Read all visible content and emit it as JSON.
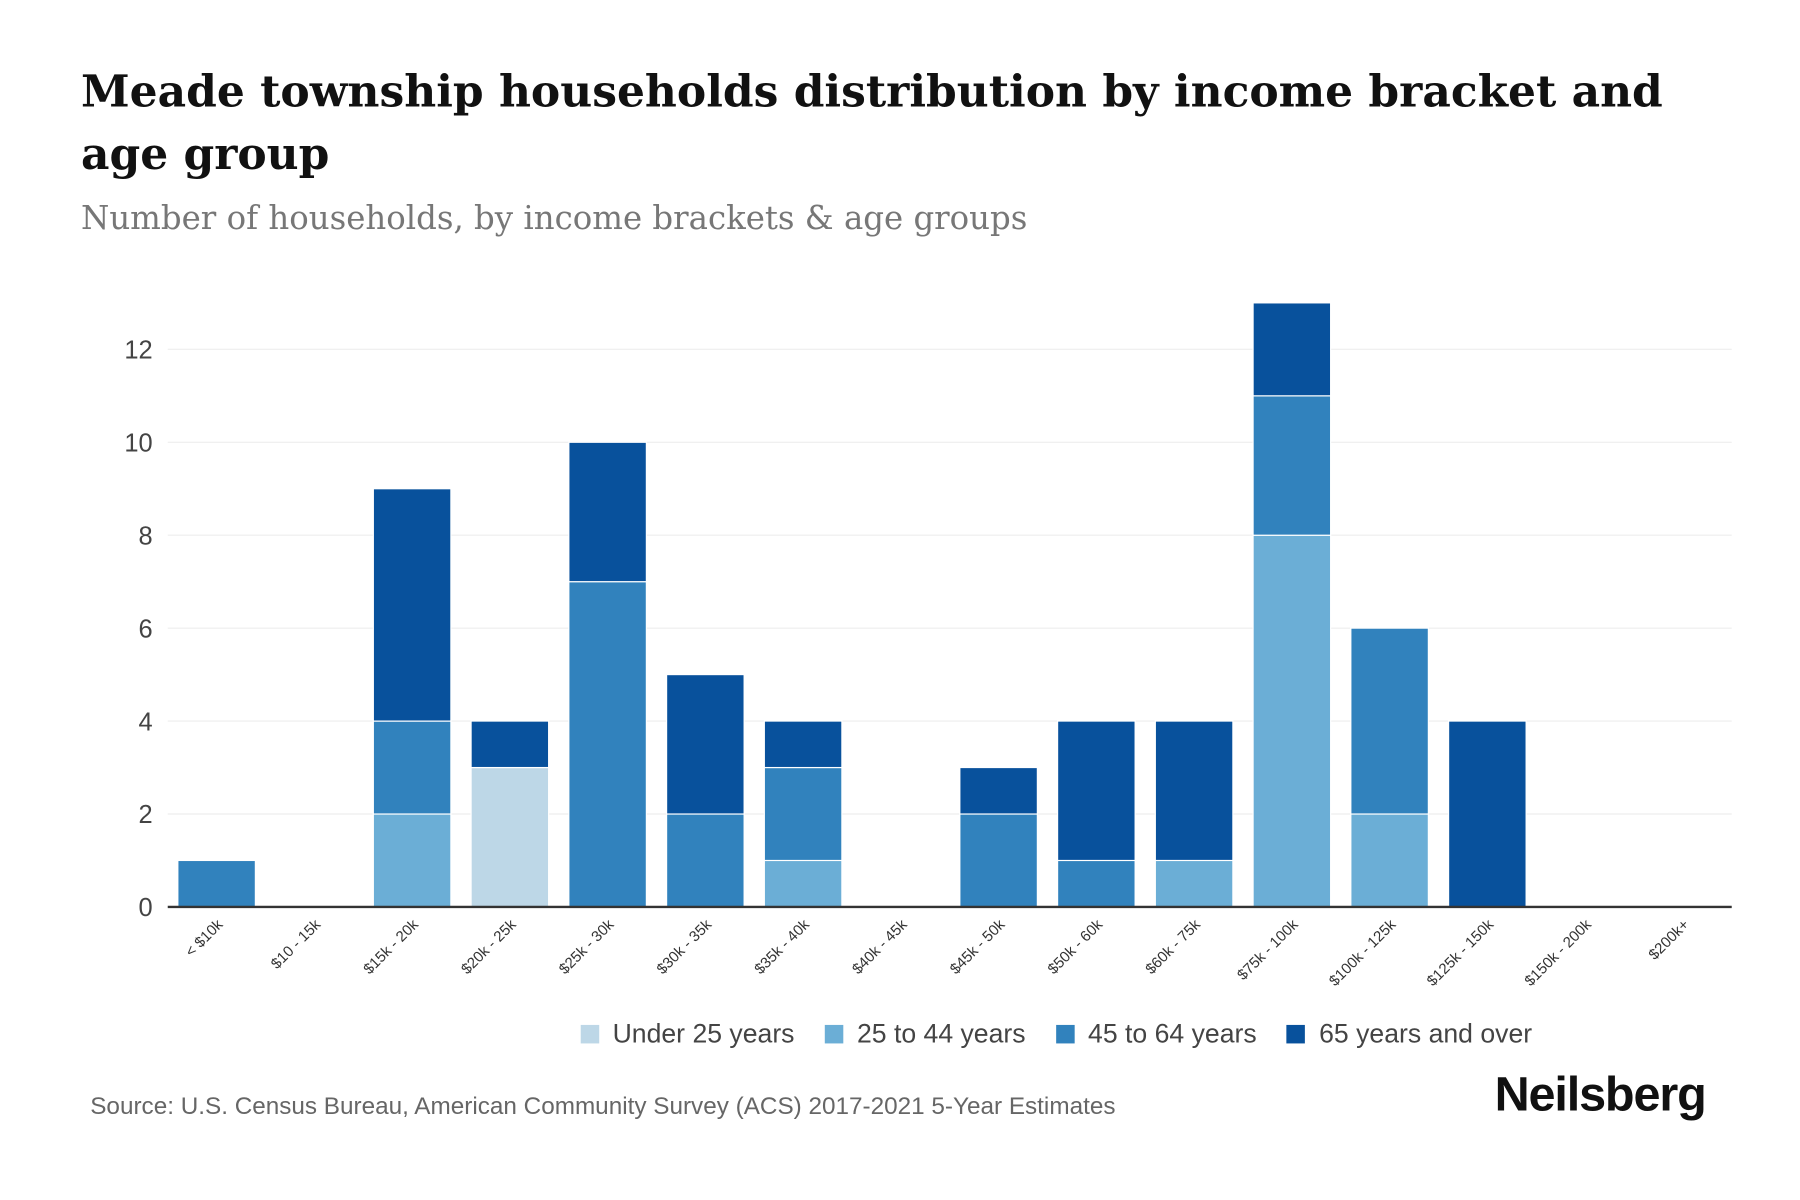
{
  "title": "Meade township households distribution by income bracket and age group",
  "subtitle": "Number of households, by income brackets & age groups",
  "source": "Source: U.S. Census Bureau, American Community Survey (ACS) 2017-2021 5-Year Estimates",
  "logo": "Neilsberg",
  "chart_data": {
    "type": "bar",
    "stacked": true,
    "title": "Meade township households distribution by income bracket and age group",
    "xlabel": "",
    "ylabel": "Number of households",
    "ylim": [
      0,
      13
    ],
    "yticks": [
      0,
      2,
      4,
      6,
      8,
      10,
      12
    ],
    "grid": true,
    "legend_position": "bottom",
    "categories": [
      "< $10k",
      "$10 - 15k",
      "$15k - 20k",
      "$20k - 25k",
      "$25k - 30k",
      "$30k - 35k",
      "$35k - 40k",
      "$40k - 45k",
      "$45k - 50k",
      "$50k - 60k",
      "$60k - 75k",
      "$75k - 100k",
      "$100k - 125k",
      "$125k - 150k",
      "$150k - 200k",
      "$200k+"
    ],
    "series": [
      {
        "name": "Under 25 years",
        "color": "#bdd7e7",
        "values": [
          0,
          0,
          0,
          3,
          0,
          0,
          0,
          0,
          0,
          0,
          0,
          0,
          0,
          0,
          0,
          0
        ]
      },
      {
        "name": "25 to 44 years",
        "color": "#6baed6",
        "values": [
          0,
          0,
          2,
          0,
          0,
          0,
          1,
          0,
          0,
          0,
          1,
          8,
          2,
          0,
          0,
          0
        ]
      },
      {
        "name": "45 to 64 years",
        "color": "#3182bd",
        "values": [
          1,
          0,
          2,
          0,
          7,
          2,
          2,
          0,
          2,
          1,
          0,
          3,
          4,
          0,
          0,
          0
        ]
      },
      {
        "name": "65 years and over",
        "color": "#08519c",
        "values": [
          0,
          0,
          5,
          1,
          3,
          3,
          1,
          0,
          1,
          3,
          3,
          2,
          0,
          4,
          0,
          0
        ]
      }
    ]
  }
}
